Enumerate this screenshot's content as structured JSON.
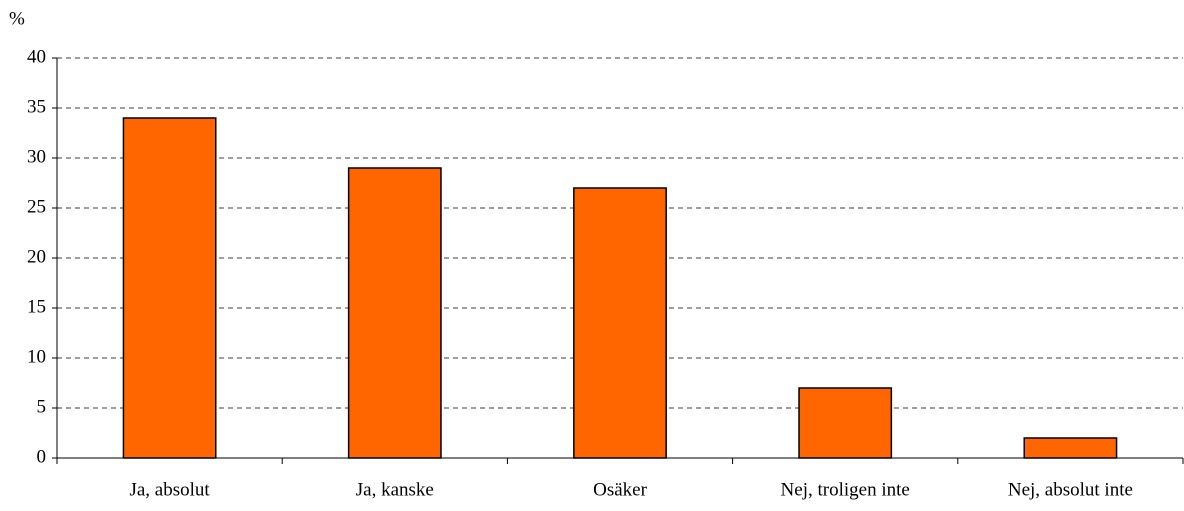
{
  "chart_data": {
    "type": "bar",
    "y_axis_label": "%",
    "categories": [
      "Ja, absolut",
      "Ja, kanske",
      "Osäker",
      "Nej, troligen inte",
      "Nej, absolut inte"
    ],
    "values": [
      34,
      29,
      27,
      7,
      2
    ],
    "color": "#ff6600",
    "ylim": [
      0,
      40
    ],
    "yticks": [
      0,
      5,
      10,
      15,
      20,
      25,
      30,
      35,
      40
    ],
    "grid": true
  }
}
